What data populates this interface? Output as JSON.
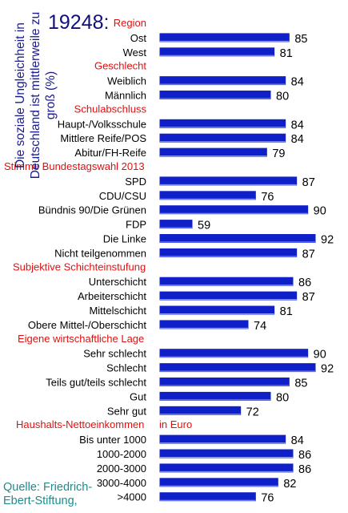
{
  "survey_code": "19248:",
  "y_axis_label": "Die soziale Ungleichheit in Deutschland ist mittlerweile zu groß (%)",
  "source": "Quelle: Friedrich-Ebert-Stiftung,",
  "colors": {
    "bar": "#1020c8",
    "bar_edge": "#ffffff",
    "group_header": "#e01010",
    "text": "#000000"
  },
  "chart_data": {
    "type": "bar",
    "orientation": "horizontal",
    "title": "19248:",
    "ylabel": "Die soziale Ungleichheit in Deutschland ist mittlerweile zu groß (%)",
    "xlim": [
      50,
      95
    ],
    "grid": false,
    "groups": [
      {
        "name": "Region",
        "categories": [
          "Ost",
          "West"
        ],
        "values": [
          85,
          81
        ]
      },
      {
        "name": "Geschlecht",
        "categories": [
          "Weiblich",
          "Männlich"
        ],
        "values": [
          84,
          80
        ]
      },
      {
        "name": "Schulabschluss",
        "categories": [
          "Haupt-/Volksschule",
          "Mittlere Reife/POS",
          "Abitur/FH-Reife"
        ],
        "values": [
          84,
          84,
          79
        ]
      },
      {
        "name": "Stimme  Bundestagswahl 2013",
        "categories": [
          "SPD",
          "CDU/CSU",
          "Bündnis 90/Die Grünen",
          "FDP",
          "Die Linke",
          "Nicht teilgenommen"
        ],
        "values": [
          87,
          76,
          90,
          59,
          92,
          87
        ]
      },
      {
        "name": "Subjektive Schichteinstufung",
        "categories": [
          "Unterschicht",
          "Arbeiterschicht",
          "Mittelschicht",
          "Obere Mittel-/Oberschicht"
        ],
        "values": [
          86,
          87,
          81,
          74
        ]
      },
      {
        "name": "Eigene wirtschaftliche Lage",
        "categories": [
          "Sehr schlecht",
          "Schlecht",
          "Teils gut/teils schlecht",
          "Gut",
          "Sehr gut"
        ],
        "values": [
          90,
          92,
          85,
          80,
          72
        ]
      },
      {
        "name": "Haushalts-Nettoeinkommen",
        "note": "in Euro",
        "categories": [
          "Bis unter 1000",
          "1000-2000",
          "2000-3000",
          "3000-4000",
          ">4000"
        ],
        "values": [
          84,
          86,
          86,
          82,
          76
        ]
      }
    ]
  }
}
